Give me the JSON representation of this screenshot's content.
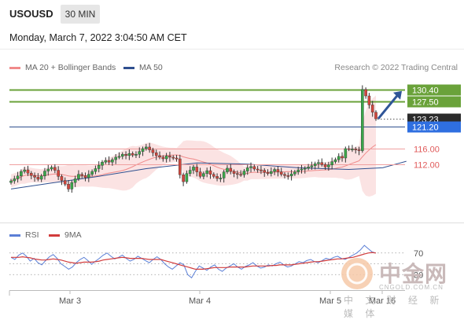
{
  "header": {
    "symbol": "USOUSD",
    "timeframe": "30 MIN"
  },
  "date_line": "Monday, March 7, 2022 3:04:50 AM CET",
  "legend": {
    "items": [
      {
        "label": "MA 20 + Bollinger Bands",
        "color": "#f08a8a"
      },
      {
        "label": "MA 50",
        "color": "#2f4f8f"
      }
    ],
    "credit": "Research © 2022 Trading Central"
  },
  "rsi_legend": {
    "items": [
      {
        "label": "RSI",
        "color": "#5b7fd6"
      },
      {
        "label": "9MA",
        "color": "#d23c3c"
      }
    ]
  },
  "watermark": {
    "cn": "中金网",
    "url": "CNGOLD.COM.CN",
    "sub": "中 文 财 经 新 媒 体"
  },
  "chart_data": [
    {
      "type": "candlestick",
      "ylim": [
        98,
        134
      ],
      "x_ticks": [
        "Mar 3",
        "Mar 4",
        "Mar 5",
        "Mar 16"
      ],
      "levels": [
        {
          "label": "130.40",
          "value": 130.4,
          "kind": "resistance",
          "color": "#6aa23a"
        },
        {
          "label": "127.50",
          "value": 127.5,
          "kind": "resistance",
          "color": "#6aa23a"
        },
        {
          "label": "123.23",
          "value": 123.23,
          "kind": "last-price",
          "color": "#2b2b2b"
        },
        {
          "label": "121.20",
          "value": 121.2,
          "kind": "pivot",
          "color": "#2f6fe0"
        },
        {
          "label": "116.00",
          "value": 116.0,
          "kind": "support",
          "color": "#e05a5a"
        },
        {
          "label": "112.00",
          "value": 112.0,
          "kind": "support",
          "color": "#e05a5a"
        }
      ],
      "close_series": [
        108.0,
        108.5,
        109.2,
        110.3,
        110.7,
        109.9,
        109.3,
        108.9,
        108.4,
        109.2,
        110.4,
        110.9,
        111.3,
        110.6,
        109.1,
        108.1,
        107.2,
        106.0,
        107.6,
        108.5,
        109.6,
        109.3,
        108.8,
        109.6,
        110.3,
        111.0,
        111.8,
        112.6,
        113.0,
        112.6,
        113.2,
        113.8,
        114.0,
        114.5,
        114.2,
        114.7,
        114.3,
        114.5,
        115.2,
        115.9,
        116.3,
        115.6,
        114.9,
        114.2,
        113.8,
        113.4,
        114.1,
        113.8,
        113.6,
        113.4,
        109.5,
        107.8,
        109.8,
        110.6,
        111.4,
        110.2,
        109.1,
        109.8,
        110.5,
        109.6,
        109.1,
        108.6,
        108.7,
        110.2,
        111.1,
        110.3,
        109.8,
        109.6,
        109.5,
        110.4,
        111.2,
        111.5,
        110.9,
        110.7,
        110.6,
        110.1,
        109.8,
        110.3,
        110.8,
        110.2,
        109.6,
        109.3,
        109.2,
        109.7,
        110.2,
        110.7,
        110.9,
        111.1,
        111.4,
        111.7,
        112.2,
        112.5,
        112.0,
        111.4,
        111.9,
        112.7,
        113.2,
        114.0,
        113.6,
        115.9,
        115.8,
        115.8,
        115.6,
        115.4,
        130.4,
        128.8,
        126.6,
        124.8,
        123.2
      ],
      "ma50_points": [
        [
          0,
          106.0
        ],
        [
          12,
          107.5
        ],
        [
          25,
          109.0
        ],
        [
          40,
          111.0
        ],
        [
          55,
          112.4
        ],
        [
          70,
          112.1
        ],
        [
          85,
          111.2
        ],
        [
          100,
          110.8
        ],
        [
          110,
          111.2
        ],
        [
          117,
          112.8
        ]
      ]
    },
    {
      "type": "line",
      "name": "RSI",
      "yticks": [
        70,
        30
      ],
      "ylim": [
        10,
        90
      ],
      "series": [
        {
          "name": "RSI",
          "color": "#5b7fd6",
          "values": [
            62,
            58,
            66,
            70,
            64,
            55,
            60,
            52,
            48,
            56,
            63,
            67,
            60,
            50,
            45,
            40,
            44,
            52,
            58,
            62,
            56,
            49,
            55,
            60,
            66,
            70,
            64,
            59,
            62,
            66,
            60,
            55,
            58,
            64,
            60,
            56,
            52,
            58,
            63,
            58,
            50,
            44,
            40,
            46,
            52,
            48,
            30,
            24,
            36,
            46,
            42,
            38,
            44,
            48,
            40,
            36,
            42,
            46,
            50,
            44,
            40,
            45,
            48,
            52,
            46,
            42,
            44,
            48,
            46,
            50,
            53,
            48,
            44,
            46,
            50,
            54,
            52,
            56,
            58,
            54,
            52,
            56,
            60,
            58,
            62,
            64,
            60,
            58,
            62,
            66,
            70,
            76,
            84,
            78,
            72,
            70
          ]
        },
        {
          "name": "9MA",
          "color": "#d23c3c",
          "values": [
            62,
            62,
            62,
            63,
            62,
            61,
            59,
            58,
            57,
            57,
            58,
            59,
            58,
            57,
            55,
            53,
            52,
            51,
            52,
            53,
            53,
            53,
            54,
            55,
            57,
            58,
            59,
            60,
            61,
            62,
            61,
            60,
            60,
            60,
            60,
            59,
            58,
            58,
            58,
            58,
            56,
            54,
            52,
            50,
            48,
            46,
            44,
            42,
            40,
            40,
            40,
            41,
            42,
            43,
            43,
            43,
            43,
            44,
            44,
            44,
            44,
            44,
            45,
            46,
            46,
            46,
            46,
            46,
            47,
            47,
            48,
            48,
            48,
            48,
            49,
            50,
            51,
            52,
            53,
            54,
            54,
            55,
            56,
            57,
            58,
            59,
            59,
            60,
            61,
            62,
            64,
            66,
            68,
            70,
            71,
            70
          ]
        }
      ]
    }
  ]
}
